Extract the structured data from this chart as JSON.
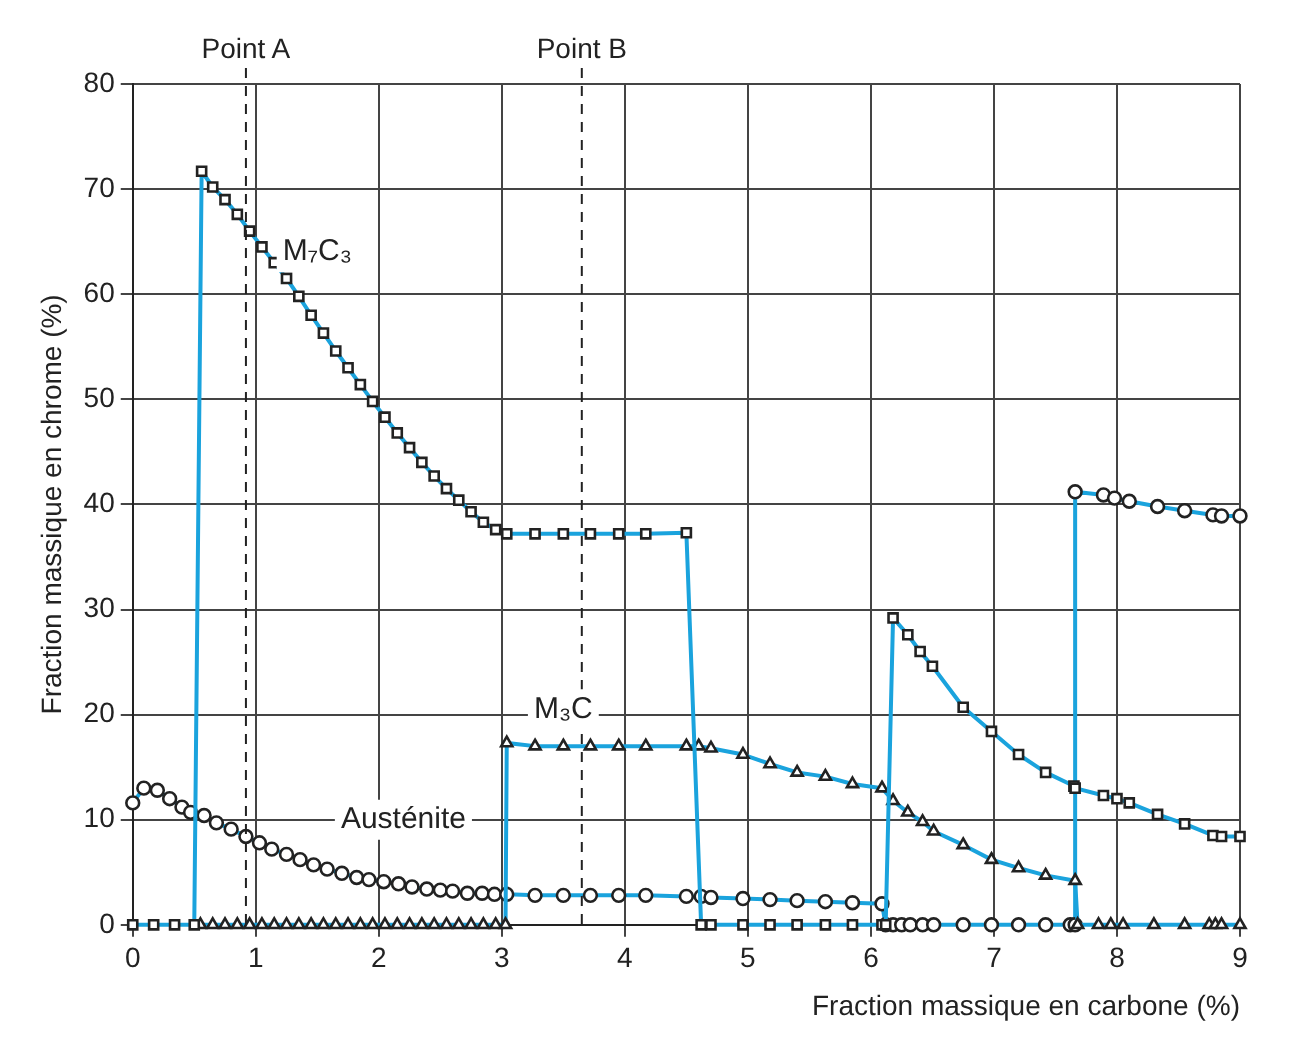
{
  "chart_data": {
    "type": "line",
    "xlabel": "Fraction massique en carbone (%)",
    "ylabel": "Fraction massique en chrome (%)",
    "xlim": [
      0,
      9
    ],
    "ylim": [
      0,
      80
    ],
    "xticks": [
      0,
      1,
      2,
      3,
      4,
      5,
      6,
      7,
      8,
      9
    ],
    "yticks": [
      0,
      10,
      20,
      30,
      40,
      50,
      60,
      70,
      80
    ],
    "grid": true,
    "legend": false,
    "line_style": "solid",
    "ref_lines": [
      {
        "axis": "x",
        "value": 0.92,
        "label": "Point A",
        "line_style": "dashed",
        "color": "#222222"
      },
      {
        "axis": "x",
        "value": 3.65,
        "label": "Point B",
        "line_style": "dashed",
        "color": "#222222"
      }
    ],
    "series": [
      {
        "name": "M₇C₃",
        "color": "#1aa3dd",
        "marker": "square",
        "x": [
          0,
          0.17,
          0.34,
          0.5,
          0.56,
          0.65,
          0.75,
          0.85,
          0.95,
          1.05,
          1.15,
          1.25,
          1.35,
          1.45,
          1.55,
          1.65,
          1.75,
          1.85,
          1.95,
          2.05,
          2.15,
          2.25,
          2.35,
          2.45,
          2.55,
          2.65,
          2.75,
          2.85,
          2.95,
          3.04,
          3.27,
          3.5,
          3.72,
          3.95,
          4.17,
          4.5,
          4.62,
          4.7,
          4.96,
          5.18,
          5.4,
          5.63,
          5.85,
          6.09,
          6.12,
          6.18,
          6.3,
          6.4,
          6.5,
          6.75,
          6.98,
          7.2,
          7.42,
          7.65,
          7.66,
          7.89,
          8.0,
          8.1,
          8.33,
          8.55,
          8.78,
          8.85,
          9.0
        ],
        "values": [
          0,
          0,
          0,
          0,
          71.7,
          70.2,
          69,
          67.6,
          66,
          64.5,
          63,
          61.5,
          59.8,
          58,
          56.3,
          54.6,
          53,
          51.4,
          49.8,
          48.3,
          46.8,
          45.4,
          44,
          42.7,
          41.5,
          40.4,
          39.3,
          38.3,
          37.6,
          37.2,
          37.2,
          37.2,
          37.2,
          37.2,
          37.2,
          37.3,
          0,
          0,
          0,
          0,
          0,
          0,
          0,
          0,
          0,
          29.2,
          27.6,
          26,
          24.6,
          20.7,
          18.4,
          16.2,
          14.5,
          13.2,
          13,
          12.3,
          12,
          11.6,
          10.5,
          9.6,
          8.5,
          8.4,
          8.4
        ]
      },
      {
        "name": "M₃C",
        "color": "#1aa3dd",
        "marker": "triangle",
        "x": [
          0.55,
          0.65,
          0.75,
          0.85,
          0.95,
          1.05,
          1.15,
          1.25,
          1.35,
          1.45,
          1.55,
          1.65,
          1.75,
          1.85,
          1.95,
          2.05,
          2.15,
          2.25,
          2.35,
          2.45,
          2.55,
          2.65,
          2.75,
          2.85,
          2.95,
          3.03,
          3.04,
          3.27,
          3.5,
          3.72,
          3.95,
          4.17,
          4.5,
          4.6,
          4.7,
          4.96,
          5.18,
          5.4,
          5.63,
          5.85,
          6.09,
          6.18,
          6.3,
          6.42,
          6.51,
          6.75,
          6.98,
          7.2,
          7.42,
          7.66,
          7.68,
          7.85,
          7.95,
          8.05,
          8.3,
          8.55,
          8.75,
          8.8,
          8.85,
          9.0
        ],
        "values": [
          0,
          0,
          0,
          0,
          0,
          0,
          0,
          0,
          0,
          0,
          0,
          0,
          0,
          0,
          0,
          0,
          0,
          0,
          0,
          0,
          0,
          0,
          0,
          0,
          0,
          0,
          17.3,
          17,
          17,
          17,
          17,
          17,
          17,
          17,
          16.8,
          16.2,
          15.3,
          14.5,
          14.1,
          13.4,
          13,
          11.8,
          10.7,
          9.8,
          8.9,
          7.6,
          6.2,
          5.4,
          4.7,
          4.2,
          0,
          0,
          0,
          0,
          0,
          0,
          0,
          0,
          0,
          0
        ]
      },
      {
        "name": "Austénite",
        "color": "#1aa3dd",
        "marker": "circle",
        "x": [
          0,
          0.09,
          0.2,
          0.3,
          0.4,
          0.47,
          0.58,
          0.68,
          0.8,
          0.92,
          1.03,
          1.13,
          1.25,
          1.36,
          1.47,
          1.58,
          1.7,
          1.82,
          1.92,
          2.04,
          2.16,
          2.27,
          2.39,
          2.5,
          2.6,
          2.72,
          2.84,
          2.94,
          3.04,
          3.27,
          3.5,
          3.72,
          3.95,
          4.17,
          4.5,
          4.62,
          4.7,
          4.96,
          5.18,
          5.4,
          5.63,
          5.85,
          6.09,
          6.12,
          6.18,
          6.25,
          6.32,
          6.42,
          6.51,
          6.75,
          6.98,
          7.2,
          7.42,
          7.62,
          7.66,
          7.66,
          7.89,
          7.98,
          8.1,
          8.33,
          8.55,
          8.78,
          8.85,
          9.0
        ],
        "values": [
          11.6,
          13,
          12.8,
          12,
          11.2,
          10.7,
          10.4,
          9.7,
          9.1,
          8.4,
          7.8,
          7.2,
          6.7,
          6.2,
          5.7,
          5.3,
          4.9,
          4.5,
          4.3,
          4.1,
          3.9,
          3.6,
          3.4,
          3.3,
          3.2,
          3,
          3,
          2.9,
          2.9,
          2.8,
          2.8,
          2.8,
          2.8,
          2.8,
          2.7,
          2.7,
          2.6,
          2.5,
          2.4,
          2.3,
          2.2,
          2.1,
          2,
          0,
          0,
          0,
          0,
          0,
          0,
          0,
          0,
          0,
          0,
          0,
          0,
          41.2,
          40.9,
          40.6,
          40.3,
          39.8,
          39.4,
          39,
          38.9,
          38.9
        ]
      }
    ]
  }
}
